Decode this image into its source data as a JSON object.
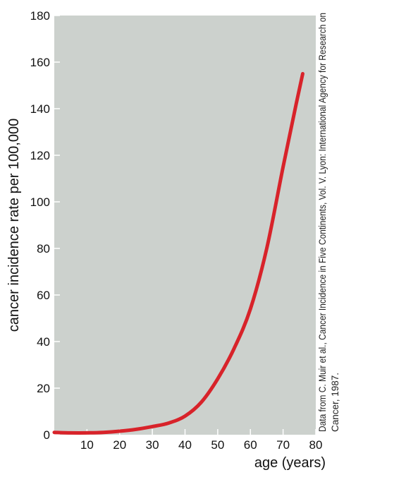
{
  "chart_data": {
    "type": "line",
    "xlabel": "age (years)",
    "ylabel": "cancer incidence rate per 100,000",
    "xlim": [
      0,
      80
    ],
    "ylim": [
      0,
      180
    ],
    "xticks": [
      10,
      20,
      30,
      40,
      50,
      60,
      70,
      80
    ],
    "yticks": [
      0,
      20,
      40,
      60,
      80,
      100,
      120,
      140,
      160,
      180
    ],
    "grid": false,
    "background_color": "#ccd1cd",
    "series": [
      {
        "color": "#d8232a",
        "x": [
          0,
          5,
          10,
          15,
          20,
          25,
          30,
          35,
          40,
          45,
          50,
          55,
          60,
          65,
          70,
          74,
          76
        ],
        "y": [
          1,
          0.8,
          0.8,
          1.0,
          1.5,
          2.3,
          3.5,
          5.0,
          8.0,
          14,
          24,
          37,
          54,
          80,
          115,
          142,
          155
        ]
      }
    ],
    "source_note": "Data from C. Muir et al., Cancer Incidence in Five Continents, Vol. V. Lyon: International Agency for Research on Cancer, 1987."
  }
}
